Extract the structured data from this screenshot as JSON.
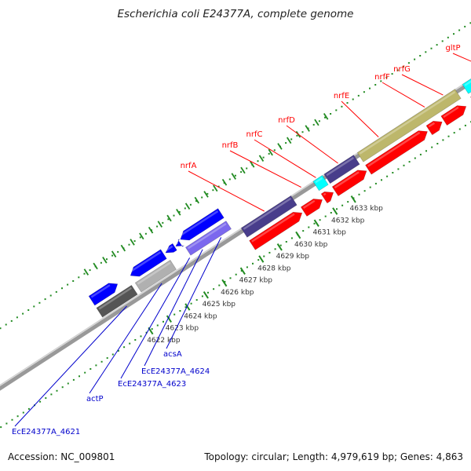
{
  "title": "Escherichia coli E24377A, complete genome",
  "accession": "Accession: NC_009801",
  "summary": "Topology: circular; Length: 4,979,619 bp; Genes: 4,863",
  "colors": {
    "forward_cds": "#0000ff",
    "forward_cds_light": "#7b68ee",
    "reverse_cds_red": "#ff0000",
    "rna": "#00ffff",
    "dark_slate": "#483d8b",
    "olive": "#bdb76b",
    "gray": "#808080",
    "backbone": "#888888",
    "tick": "#228b22",
    "label_red": "#ff0000",
    "label_blue": "#0000cc"
  },
  "ticks": [
    {
      "label": "4622 kbp"
    },
    {
      "label": "4623 kbp"
    },
    {
      "label": "4624 kbp"
    },
    {
      "label": "4625 kbp"
    },
    {
      "label": "4626 kbp"
    },
    {
      "label": "4627 kbp"
    },
    {
      "label": "4628 kbp"
    },
    {
      "label": "4629 kbp"
    },
    {
      "label": "4630 kbp"
    },
    {
      "label": "4631 kbp"
    },
    {
      "label": "4632 kbp"
    },
    {
      "label": "4633 kbp"
    }
  ],
  "gene_labels": [
    {
      "name": "nrfA",
      "color": "red"
    },
    {
      "name": "nrfB",
      "color": "red"
    },
    {
      "name": "nrfC",
      "color": "red"
    },
    {
      "name": "nrfD",
      "color": "red"
    },
    {
      "name": "nrfE",
      "color": "red"
    },
    {
      "name": "nrfF",
      "color": "red"
    },
    {
      "name": "nrfG",
      "color": "red"
    },
    {
      "name": "gltP",
      "color": "red"
    },
    {
      "name": "acsA",
      "color": "blue"
    },
    {
      "name": "EcE24377A_4624",
      "color": "blue"
    },
    {
      "name": "EcE24377A_4623",
      "color": "blue"
    },
    {
      "name": "actP",
      "color": "blue"
    },
    {
      "name": "EcE24377A_4621",
      "color": "blue"
    }
  ]
}
